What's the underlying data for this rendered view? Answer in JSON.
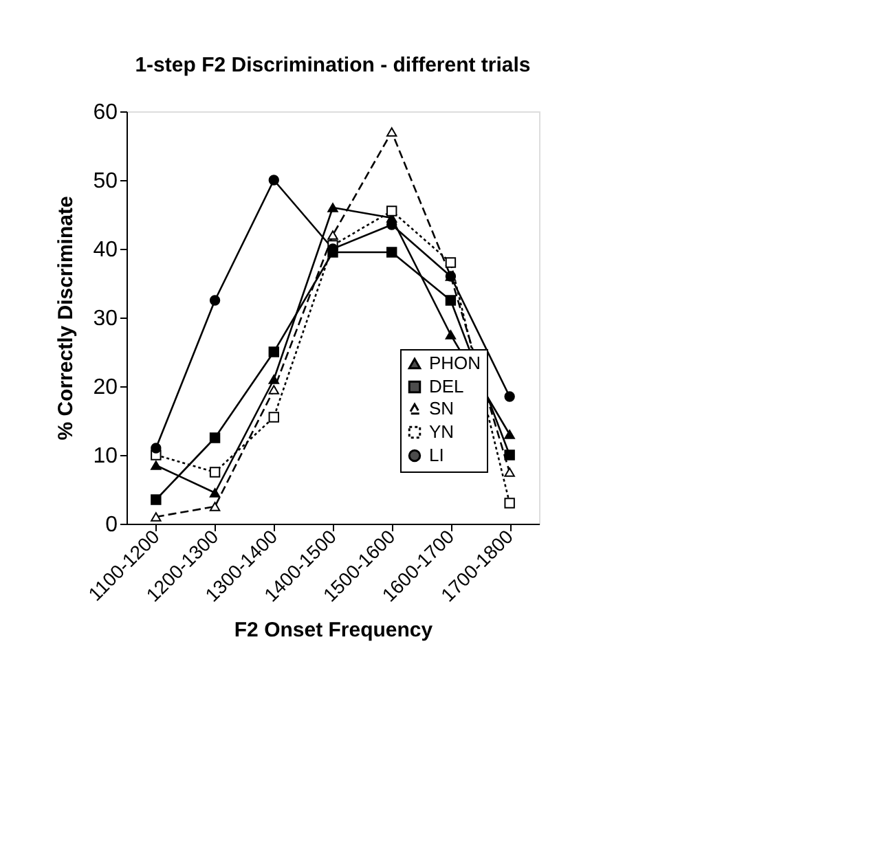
{
  "chart_data": {
    "type": "line",
    "title": "1-step F2 Discrimination - different trials",
    "xlabel": "F2 Onset Frequency",
    "ylabel": "% Correctly Discriminate",
    "categories": [
      "1100-1200",
      "1200-1300",
      "1300-1400",
      "1400-1500",
      "1500-1600",
      "1600-1700",
      "1700-1800"
    ],
    "ylim": [
      0,
      60
    ],
    "yticks": [
      0,
      10,
      20,
      30,
      40,
      50,
      60
    ],
    "grid": false,
    "legend": "bottom right",
    "series": [
      {
        "name": "PHON",
        "color": "#000000",
        "marker": "triangle",
        "line_style": "solid",
        "values": [
          8.5,
          4.5,
          21,
          46,
          44.5,
          27.5,
          13
        ]
      },
      {
        "name": "DEL",
        "color": "#000000",
        "marker": "square",
        "line_style": "solid",
        "values": [
          3.5,
          12.5,
          25,
          39.5,
          39.5,
          32.5,
          10
        ]
      },
      {
        "name": "SN",
        "color": "#000000",
        "marker": "triangle",
        "line_style": "dashed",
        "values": [
          1,
          2.5,
          19.5,
          42,
          57,
          36,
          7.5
        ]
      },
      {
        "name": "YN",
        "color": "#000000",
        "marker": "square",
        "line_style": "dotted",
        "values": [
          10,
          7.5,
          15.5,
          40.5,
          45.5,
          38,
          3
        ]
      },
      {
        "name": "LI",
        "color": "#000000",
        "marker": "circle",
        "line_style": "solid",
        "values": [
          11,
          32.5,
          50,
          40,
          43.5,
          36,
          18.5
        ]
      }
    ]
  }
}
